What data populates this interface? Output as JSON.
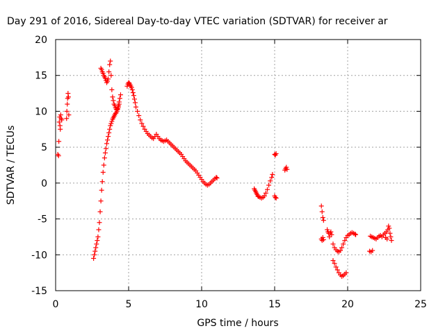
{
  "chart_data": {
    "type": "scatter",
    "title": "Day 291 of 2016, Sidereal Day-to-day VTEC variation (SDTVAR) for receiver ar",
    "xlabel": "GPS time / hours",
    "ylabel": "SDTVAR / TECUs",
    "xlim": [
      0,
      25
    ],
    "ylim": [
      -15,
      20
    ],
    "xticks": [
      0,
      5,
      10,
      15,
      20,
      25
    ],
    "yticks": [
      -15,
      -10,
      -5,
      0,
      5,
      10,
      15,
      20
    ],
    "grid": true,
    "marker": "plus",
    "color": "#ff0000",
    "series": [
      {
        "segments": [
          [
            [
              0.15,
              4.0
            ],
            [
              0.2,
              3.8
            ],
            [
              0.22,
              5.8
            ],
            [
              0.25,
              8.5
            ],
            [
              0.28,
              9.2
            ],
            [
              0.3,
              8.0
            ],
            [
              0.32,
              7.5
            ],
            [
              0.35,
              9.5
            ],
            [
              0.38,
              9.0
            ],
            [
              0.42,
              8.8
            ]
          ],
          [
            [
              0.75,
              9.0
            ],
            [
              0.77,
              10.0
            ],
            [
              0.8,
              11.0
            ],
            [
              0.82,
              11.8
            ],
            [
              0.85,
              12.5
            ],
            [
              0.88,
              12.0
            ],
            [
              0.9,
              9.5
            ]
          ],
          [
            [
              2.6,
              -10.5
            ],
            [
              2.65,
              -10.0
            ],
            [
              2.7,
              -9.5
            ],
            [
              2.75,
              -9.0
            ],
            [
              2.8,
              -8.5
            ],
            [
              2.85,
              -8.0
            ],
            [
              2.9,
              -7.5
            ],
            [
              2.95,
              -6.5
            ],
            [
              3.0,
              -5.5
            ],
            [
              3.05,
              -4.0
            ],
            [
              3.1,
              -2.5
            ],
            [
              3.15,
              -1.0
            ],
            [
              3.2,
              0.2
            ],
            [
              3.25,
              1.5
            ],
            [
              3.3,
              2.5
            ],
            [
              3.35,
              3.5
            ],
            [
              3.4,
              4.2
            ],
            [
              3.45,
              4.8
            ],
            [
              3.5,
              5.5
            ],
            [
              3.55,
              6.0
            ],
            [
              3.6,
              6.5
            ],
            [
              3.65,
              7.0
            ],
            [
              3.7,
              7.5
            ],
            [
              3.75,
              8.0
            ],
            [
              3.8,
              8.3
            ],
            [
              3.85,
              8.6
            ],
            [
              3.9,
              8.9
            ],
            [
              3.95,
              9.1
            ],
            [
              4.0,
              9.3
            ],
            [
              4.05,
              9.5
            ],
            [
              4.1,
              9.7
            ],
            [
              4.15,
              9.8
            ],
            [
              4.2,
              10.0
            ],
            [
              4.25,
              10.3
            ],
            [
              4.3,
              10.8
            ],
            [
              4.35,
              11.3
            ],
            [
              4.4,
              11.8
            ],
            [
              4.45,
              12.3
            ]
          ],
          [
            [
              3.1,
              16.0
            ],
            [
              3.15,
              15.8
            ],
            [
              3.2,
              15.5
            ],
            [
              3.25,
              15.3
            ],
            [
              3.3,
              15.0
            ],
            [
              3.35,
              14.8
            ],
            [
              3.4,
              14.6
            ],
            [
              3.45,
              14.3
            ],
            [
              3.5,
              14.0
            ],
            [
              3.55,
              14.2
            ],
            [
              3.6,
              14.5
            ],
            [
              3.65,
              15.5
            ],
            [
              3.7,
              16.5
            ],
            [
              3.75,
              17.0
            ],
            [
              3.8,
              15.0
            ],
            [
              3.85,
              13.0
            ],
            [
              3.9,
              12.0
            ],
            [
              3.95,
              11.5
            ],
            [
              4.0,
              11.0
            ],
            [
              4.05,
              10.8
            ],
            [
              4.1,
              10.5
            ],
            [
              4.15,
              10.3
            ],
            [
              4.2,
              10.2
            ],
            [
              4.25,
              10.4
            ],
            [
              4.3,
              10.6
            ],
            [
              4.35,
              11.0
            ]
          ],
          [
            [
              4.9,
              13.5
            ],
            [
              4.95,
              13.8
            ],
            [
              5.0,
              14.0
            ],
            [
              5.05,
              13.9
            ],
            [
              5.1,
              13.7
            ],
            [
              5.15,
              13.5
            ],
            [
              5.2,
              13.3
            ],
            [
              5.25,
              13.0
            ],
            [
              5.3,
              12.6
            ],
            [
              5.35,
              12.2
            ],
            [
              5.4,
              11.7
            ],
            [
              5.45,
              11.2
            ],
            [
              5.5,
              10.6
            ],
            [
              5.6,
              10.0
            ],
            [
              5.7,
              9.4
            ],
            [
              5.8,
              8.8
            ],
            [
              5.9,
              8.3
            ],
            [
              6.0,
              7.9
            ],
            [
              6.1,
              7.5
            ],
            [
              6.2,
              7.2
            ],
            [
              6.3,
              6.9
            ],
            [
              6.4,
              6.7
            ],
            [
              6.5,
              6.5
            ],
            [
              6.6,
              6.3
            ],
            [
              6.7,
              6.2
            ],
            [
              6.8,
              6.5
            ],
            [
              6.9,
              6.8
            ],
            [
              7.0,
              6.5
            ],
            [
              7.1,
              6.2
            ],
            [
              7.2,
              6.0
            ],
            [
              7.3,
              5.9
            ],
            [
              7.4,
              5.8
            ],
            [
              7.5,
              5.9
            ],
            [
              7.6,
              6.0
            ],
            [
              7.7,
              5.8
            ],
            [
              7.8,
              5.6
            ],
            [
              7.9,
              5.4
            ],
            [
              8.0,
              5.2
            ],
            [
              8.1,
              5.0
            ],
            [
              8.2,
              4.8
            ],
            [
              8.3,
              4.6
            ],
            [
              8.4,
              4.4
            ],
            [
              8.5,
              4.2
            ],
            [
              8.6,
              4.0
            ],
            [
              8.7,
              3.7
            ],
            [
              8.8,
              3.4
            ],
            [
              8.9,
              3.1
            ],
            [
              9.0,
              2.9
            ],
            [
              9.1,
              2.7
            ],
            [
              9.2,
              2.5
            ],
            [
              9.3,
              2.3
            ],
            [
              9.4,
              2.1
            ],
            [
              9.5,
              1.9
            ],
            [
              9.6,
              1.7
            ],
            [
              9.7,
              1.4
            ],
            [
              9.8,
              1.1
            ],
            [
              9.9,
              0.8
            ],
            [
              10.0,
              0.5
            ],
            [
              10.1,
              0.2
            ],
            [
              10.2,
              0.0
            ],
            [
              10.3,
              -0.2
            ],
            [
              10.4,
              -0.3
            ],
            [
              10.5,
              -0.2
            ],
            [
              10.6,
              0.0
            ],
            [
              10.7,
              0.2
            ],
            [
              10.8,
              0.4
            ],
            [
              10.9,
              0.6
            ],
            [
              11.0,
              0.8
            ],
            [
              11.05,
              0.7
            ]
          ],
          [
            [
              13.6,
              -0.8
            ],
            [
              13.65,
              -1.0
            ],
            [
              13.7,
              -1.2
            ],
            [
              13.75,
              -1.4
            ],
            [
              13.8,
              -1.6
            ],
            [
              13.85,
              -1.8
            ],
            [
              13.9,
              -1.9
            ],
            [
              14.0,
              -2.0
            ],
            [
              14.1,
              -2.1
            ],
            [
              14.2,
              -2.0
            ],
            [
              14.3,
              -1.8
            ],
            [
              14.4,
              -1.4
            ],
            [
              14.5,
              -0.9
            ],
            [
              14.6,
              -0.3
            ],
            [
              14.7,
              0.3
            ],
            [
              14.8,
              0.8
            ],
            [
              14.85,
              1.2
            ]
          ],
          [
            [
              15.0,
              4.0
            ],
            [
              15.05,
              3.9
            ],
            [
              15.1,
              4.1
            ],
            [
              15.0,
              -1.8
            ],
            [
              15.05,
              -2.0
            ],
            [
              15.1,
              -2.1
            ]
          ],
          [
            [
              15.7,
              1.8
            ],
            [
              15.75,
              2.0
            ],
            [
              15.8,
              2.2
            ],
            [
              15.85,
              1.9
            ]
          ],
          [
            [
              18.2,
              -3.2
            ],
            [
              18.25,
              -4.0
            ],
            [
              18.3,
              -4.8
            ],
            [
              18.35,
              -5.2
            ],
            [
              18.2,
              -7.8
            ],
            [
              18.25,
              -8.0
            ],
            [
              18.3,
              -7.6
            ],
            [
              18.35,
              -7.9
            ]
          ],
          [
            [
              18.6,
              -6.5
            ],
            [
              18.65,
              -6.8
            ],
            [
              18.7,
              -7.0
            ],
            [
              18.75,
              -7.5
            ],
            [
              18.8,
              -7.0
            ],
            [
              18.85,
              -6.8
            ],
            [
              18.9,
              -7.2
            ]
          ],
          [
            [
              19.0,
              -8.5
            ],
            [
              19.1,
              -9.0
            ],
            [
              19.2,
              -9.3
            ],
            [
              19.3,
              -9.5
            ],
            [
              19.4,
              -9.6
            ],
            [
              19.5,
              -9.4
            ],
            [
              19.6,
              -9.0
            ],
            [
              19.7,
              -8.5
            ],
            [
              19.8,
              -8.0
            ],
            [
              19.9,
              -7.6
            ],
            [
              20.0,
              -7.3
            ],
            [
              20.1,
              -7.2
            ],
            [
              20.2,
              -7.0
            ],
            [
              20.3,
              -6.9
            ],
            [
              20.4,
              -7.0
            ],
            [
              20.5,
              -7.1
            ],
            [
              20.55,
              -7.2
            ]
          ],
          [
            [
              19.0,
              -10.8
            ],
            [
              19.1,
              -11.2
            ],
            [
              19.2,
              -11.7
            ],
            [
              19.3,
              -12.1
            ],
            [
              19.4,
              -12.5
            ],
            [
              19.5,
              -12.8
            ],
            [
              19.6,
              -13.0
            ],
            [
              19.7,
              -12.9
            ],
            [
              19.8,
              -12.7
            ],
            [
              19.9,
              -12.5
            ]
          ],
          [
            [
              21.5,
              -9.5
            ],
            [
              21.6,
              -9.6
            ],
            [
              21.7,
              -9.4
            ],
            [
              21.55,
              -7.4
            ],
            [
              21.65,
              -7.5
            ],
            [
              21.75,
              -7.6
            ],
            [
              21.85,
              -7.7
            ],
            [
              21.95,
              -7.8
            ],
            [
              22.05,
              -7.6
            ],
            [
              22.15,
              -7.4
            ],
            [
              22.25,
              -7.3
            ],
            [
              22.35,
              -7.5
            ],
            [
              22.45,
              -7.2
            ],
            [
              22.55,
              -7.0
            ],
            [
              22.65,
              -6.8
            ],
            [
              22.75,
              -6.5
            ],
            [
              22.8,
              -6.0
            ],
            [
              22.85,
              -6.3
            ],
            [
              22.9,
              -7.0
            ],
            [
              22.95,
              -7.5
            ],
            [
              23.0,
              -8.0
            ],
            [
              22.7,
              -7.8
            ],
            [
              22.6,
              -7.6
            ]
          ]
        ]
      }
    ]
  }
}
